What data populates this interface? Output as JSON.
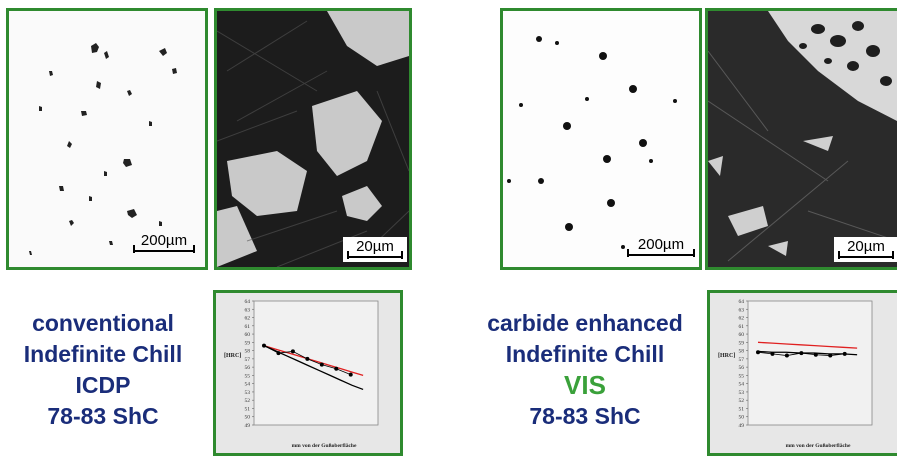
{
  "micrographs": [
    {
      "id": "left-low",
      "scale": "200µm"
    },
    {
      "id": "left-high",
      "scale": "20µm"
    },
    {
      "id": "right-low",
      "scale": "200µm"
    },
    {
      "id": "right-high",
      "scale": "20µm"
    }
  ],
  "left_caption": {
    "line1": "conventional",
    "line2": "Indefinite Chill",
    "line3": "ICDP",
    "line4": "78-83 ShC"
  },
  "right_caption": {
    "line1": "carbide enhanced",
    "line2": "Indefinite Chill",
    "line3": "VIS",
    "line4": "78-83 ShC",
    "accent_color": "#3aa13a"
  },
  "colors": {
    "frame": "#2f8a2f",
    "caption_text": "#1a2d7a",
    "red_line": "#e02020"
  },
  "chart_data": [
    {
      "type": "line",
      "ylabel": "[HRC]",
      "xlabel": "mm von der Gußoberfläche",
      "ylim": [
        49,
        64
      ],
      "yticks": [
        "64",
        "63",
        "62",
        "61",
        "60",
        "59",
        "58",
        "57",
        "56",
        "55",
        "54",
        "53",
        "52",
        "51",
        "50",
        "49"
      ],
      "series": [
        {
          "values": [
            58.6,
            58.2,
            57.8,
            57.4,
            57.0,
            56.6,
            56.2,
            55.8,
            55.4,
            55.0
          ],
          "color": "#e02020"
        },
        {
          "values": [
            58.6,
            58.0,
            57.4,
            56.8,
            56.2,
            55.6,
            55.0,
            54.4,
            53.8,
            53.3
          ],
          "color": "#000000"
        },
        {
          "values": [
            58.6,
            57.7,
            57.9,
            57.0,
            56.3,
            55.8,
            55.1
          ],
          "color": "#000000",
          "markers": true
        }
      ]
    },
    {
      "type": "line",
      "ylabel": "[HRC]",
      "xlabel": "mm von der Gußoberfläche",
      "ylim": [
        49,
        64
      ],
      "yticks": [
        "64",
        "63",
        "62",
        "61",
        "60",
        "59",
        "58",
        "57",
        "56",
        "55",
        "54",
        "53",
        "52",
        "51",
        "50",
        "49"
      ],
      "series": [
        {
          "values": [
            59.0,
            58.9,
            58.8,
            58.7,
            58.6,
            58.5,
            58.4,
            58.3
          ],
          "color": "#e02020"
        },
        {
          "values": [
            57.9,
            57.8,
            57.8,
            57.7,
            57.7,
            57.6,
            57.6,
            57.5
          ],
          "color": "#000000"
        },
        {
          "values": [
            57.8,
            57.6,
            57.4,
            57.7,
            57.5,
            57.4,
            57.6
          ],
          "color": "#000000",
          "markers": true
        }
      ]
    }
  ]
}
